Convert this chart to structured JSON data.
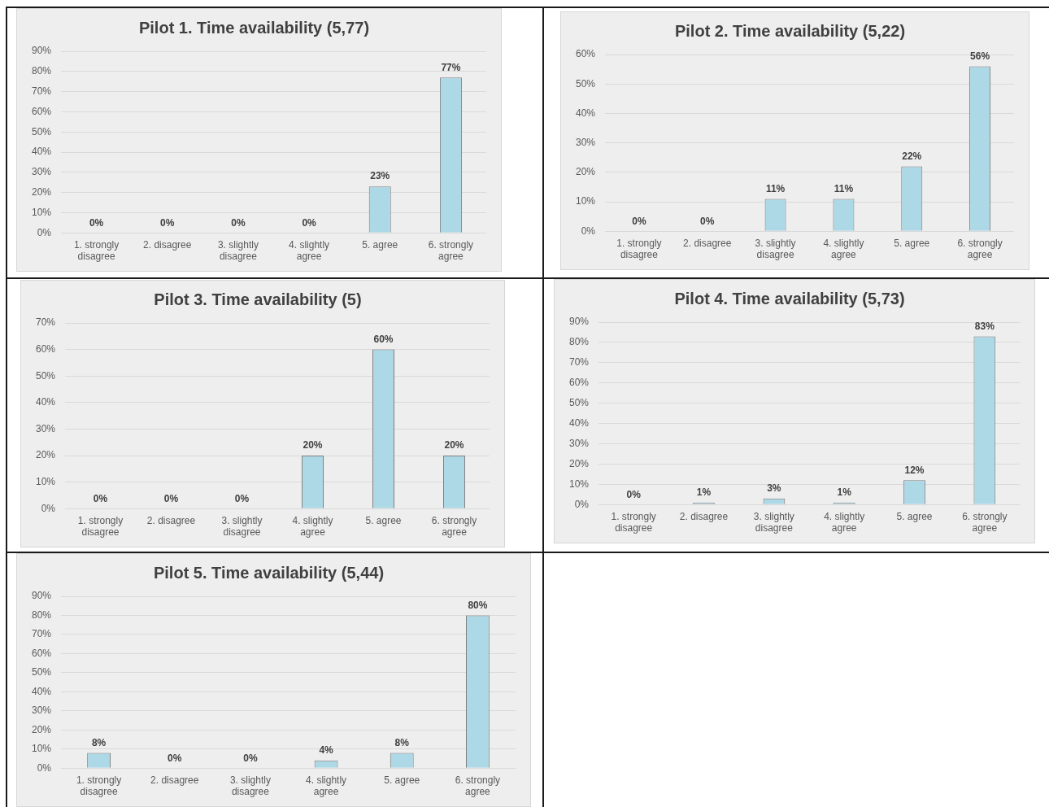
{
  "chart_data": [
    {
      "type": "bar",
      "title": "Pilot 1. Time availability (5,77)",
      "categories": [
        "1. strongly disagree",
        "2. disagree",
        "3. slightly disagree",
        "4. slightly agree",
        "5. agree",
        "6. strongly agree"
      ],
      "values": [
        0,
        0,
        0,
        0,
        23,
        77
      ],
      "value_labels": [
        "0%",
        "0%",
        "0%",
        "0%",
        "23%",
        "77%"
      ],
      "color": "#add8e6",
      "ylim": [
        0,
        90
      ],
      "yticks": [
        {
          "value": 0,
          "label": "0%"
        },
        {
          "value": 10,
          "label": "10%"
        },
        {
          "value": 20,
          "label": "20%"
        },
        {
          "value": 30,
          "label": "30%"
        },
        {
          "value": 40,
          "label": "40%"
        },
        {
          "value": 50,
          "label": "50%"
        },
        {
          "value": 60,
          "label": "60%"
        },
        {
          "value": 70,
          "label": "70%"
        },
        {
          "value": 80,
          "label": "80%"
        },
        {
          "value": 90,
          "label": "90%"
        }
      ],
      "grid": "y"
    },
    {
      "type": "bar",
      "title": "Pilot 2. Time availability (5,22)",
      "categories": [
        "1. strongly disagree",
        "2. disagree",
        "3. slightly disagree",
        "4. slightly agree",
        "5. agree",
        "6. strongly agree"
      ],
      "values": [
        0,
        0,
        11,
        11,
        22,
        56
      ],
      "value_labels": [
        "0%",
        "0%",
        "11%",
        "11%",
        "22%",
        "56%"
      ],
      "color": "#add8e6",
      "ylim": [
        0,
        60
      ],
      "yticks": [
        {
          "value": 0,
          "label": "0%"
        },
        {
          "value": 10,
          "label": "10%"
        },
        {
          "value": 20,
          "label": "20%"
        },
        {
          "value": 30,
          "label": "30%"
        },
        {
          "value": 40,
          "label": "40%"
        },
        {
          "value": 50,
          "label": "50%"
        },
        {
          "value": 60,
          "label": "60%"
        }
      ],
      "grid": "y"
    },
    {
      "type": "bar",
      "title": "Pilot 3. Time availability (5)",
      "categories": [
        "1. strongly disagree",
        "2. disagree",
        "3. slightly disagree",
        "4. slightly agree",
        "5. agree",
        "6. strongly agree"
      ],
      "values": [
        0,
        0,
        0,
        20,
        60,
        20
      ],
      "value_labels": [
        "0%",
        "0%",
        "0%",
        "20%",
        "60%",
        "20%"
      ],
      "color": "#add8e6",
      "ylim": [
        0,
        70
      ],
      "yticks": [
        {
          "value": 0,
          "label": "0%"
        },
        {
          "value": 10,
          "label": "10%"
        },
        {
          "value": 20,
          "label": "20%"
        },
        {
          "value": 30,
          "label": "30%"
        },
        {
          "value": 40,
          "label": "40%"
        },
        {
          "value": 50,
          "label": "50%"
        },
        {
          "value": 60,
          "label": "60%"
        },
        {
          "value": 70,
          "label": "70%"
        }
      ],
      "grid": "y"
    },
    {
      "type": "bar",
      "title": "Pilot 4. Time availability (5,73)",
      "categories": [
        "1. strongly disagree",
        "2. disagree",
        "3. slightly disagree",
        "4. slightly agree",
        "5. agree",
        "6. strongly agree"
      ],
      "values": [
        0,
        1,
        3,
        1,
        12,
        83
      ],
      "value_labels": [
        "0%",
        "1%",
        "3%",
        "1%",
        "12%",
        "83%"
      ],
      "color": "#add8e6",
      "ylim": [
        0,
        90
      ],
      "yticks": [
        {
          "value": 0,
          "label": "0%"
        },
        {
          "value": 10,
          "label": "10%"
        },
        {
          "value": 20,
          "label": "20%"
        },
        {
          "value": 30,
          "label": "30%"
        },
        {
          "value": 40,
          "label": "40%"
        },
        {
          "value": 50,
          "label": "50%"
        },
        {
          "value": 60,
          "label": "60%"
        },
        {
          "value": 70,
          "label": "70%"
        },
        {
          "value": 80,
          "label": "80%"
        },
        {
          "value": 90,
          "label": "90%"
        }
      ],
      "grid": "y"
    },
    {
      "type": "bar",
      "title": "Pilot 5. Time availability (5,44)",
      "categories": [
        "1. strongly disagree",
        "2. disagree",
        "3. slightly disagree",
        "4. slightly agree",
        "5. agree",
        "6. strongly agree"
      ],
      "values": [
        8,
        0,
        0,
        4,
        8,
        80
      ],
      "value_labels": [
        "8%",
        "0%",
        "0%",
        "4%",
        "8%",
        "80%"
      ],
      "color": "#add8e6",
      "ylim": [
        0,
        90
      ],
      "yticks": [
        {
          "value": 0,
          "label": "0%"
        },
        {
          "value": 10,
          "label": "10%"
        },
        {
          "value": 20,
          "label": "20%"
        },
        {
          "value": 30,
          "label": "30%"
        },
        {
          "value": 40,
          "label": "40%"
        },
        {
          "value": 50,
          "label": "50%"
        },
        {
          "value": 60,
          "label": "60%"
        },
        {
          "value": 70,
          "label": "70%"
        },
        {
          "value": 80,
          "label": "80%"
        },
        {
          "value": 90,
          "label": "90%"
        }
      ],
      "grid": "y"
    }
  ]
}
